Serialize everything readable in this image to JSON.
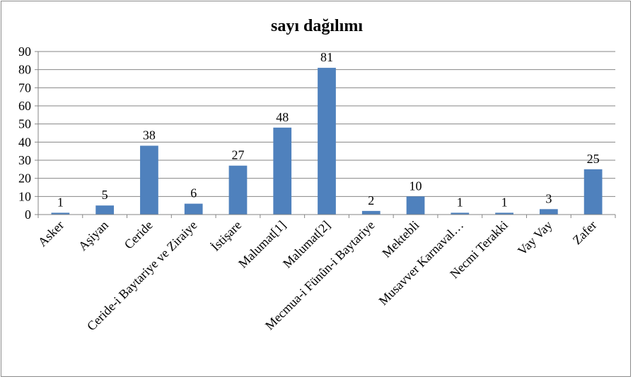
{
  "chart_data": {
    "type": "bar",
    "title": "sayı dağılımı",
    "xlabel": "",
    "ylabel": "",
    "ylim": [
      0,
      90
    ],
    "yticks": [
      0,
      10,
      20,
      30,
      40,
      50,
      60,
      70,
      80,
      90
    ],
    "grid": true,
    "legend": "none",
    "bar_color": "#4f81bd",
    "categories": [
      "Asker",
      "Aşiyan",
      "Ceride",
      "Ceride-i Baytariye ve Ziraiye",
      "İstişare",
      "Malumat[1]",
      "Malumat[2]",
      "Mecmua-i Fünûn-i Baytariye",
      "Mektebli",
      "Musavver Karnaval…",
      "Necmi Terakki",
      "Vay Vay",
      "Zafer"
    ],
    "values": [
      1,
      5,
      38,
      6,
      27,
      48,
      81,
      2,
      10,
      1,
      1,
      3,
      25
    ]
  }
}
